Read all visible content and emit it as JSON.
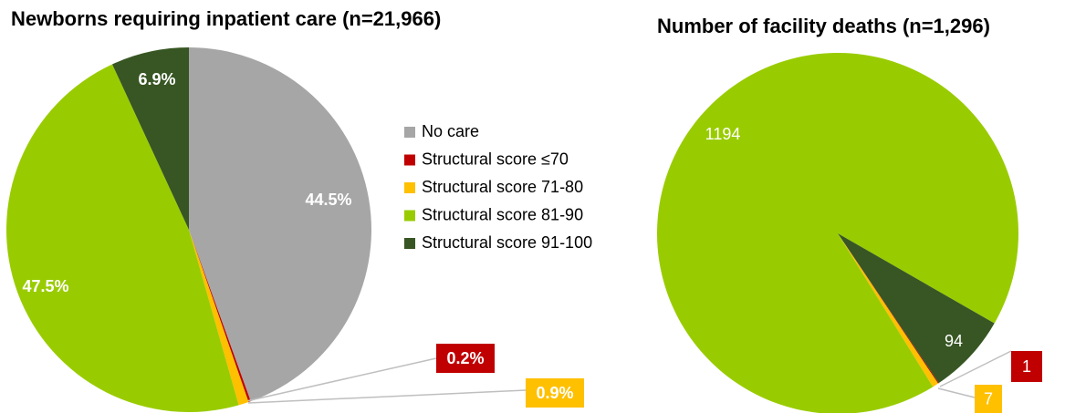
{
  "chart_data": [
    {
      "type": "pie",
      "title": "Newborns requiring inpatient care (n=21,966)",
      "categories": [
        "No care",
        "Structural score ≤70",
        "Structural score 71-80",
        "Structural score 81-90",
        "Structural score 91-100"
      ],
      "values": [
        44.5,
        0.2,
        0.9,
        47.5,
        6.9
      ],
      "value_labels": [
        "44.5%",
        "0.2%",
        "0.9%",
        "47.5%",
        "6.9%"
      ],
      "colors": [
        "#a6a6a6",
        "#c00000",
        "#ffc000",
        "#99cc00",
        "#375623"
      ],
      "legend": "right"
    },
    {
      "type": "pie",
      "title": "Number of facility deaths (n=1,296)",
      "categories": [
        "Structural score ≤70",
        "Structural score 71-80",
        "Structural score 81-90",
        "Structural score 91-100"
      ],
      "values": [
        1,
        7,
        1194,
        94
      ],
      "colors": [
        "#c00000",
        "#ffc000",
        "#99cc00",
        "#375623"
      ]
    }
  ]
}
